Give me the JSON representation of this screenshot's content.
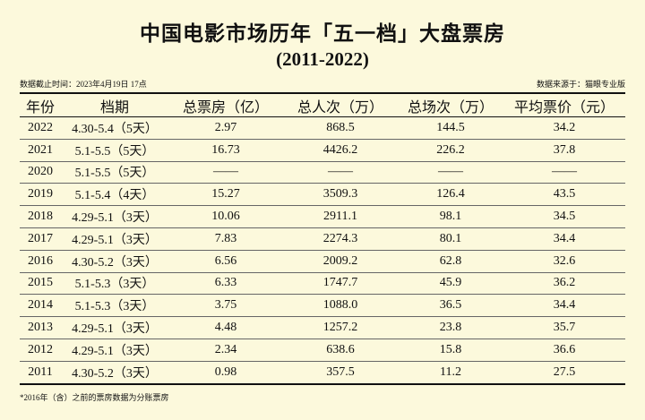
{
  "header": {
    "title": "中国电影市场历年「五一档」大盘票房",
    "subtitle": "(2011-2022)",
    "cutoff": "数据截止时间：2023年4月19日 17点",
    "source": "数据来源于：猫眼专业版"
  },
  "table": {
    "columns": [
      "年份",
      "档期",
      "总票房（亿）",
      "总人次（万）",
      "总场次（万）",
      "平均票价（元）"
    ],
    "rows": [
      [
        "2022",
        "4.30-5.4（5天）",
        "2.97",
        "868.5",
        "144.5",
        "34.2"
      ],
      [
        "2021",
        "5.1-5.5（5天）",
        "16.73",
        "4426.2",
        "226.2",
        "37.8"
      ],
      [
        "2020",
        "5.1-5.5（5天）",
        "——",
        "——",
        "——",
        "——"
      ],
      [
        "2019",
        "5.1-5.4（4天）",
        "15.27",
        "3509.3",
        "126.4",
        "43.5"
      ],
      [
        "2018",
        "4.29-5.1（3天）",
        "10.06",
        "2911.1",
        "98.1",
        "34.5"
      ],
      [
        "2017",
        "4.29-5.1（3天）",
        "7.83",
        "2274.3",
        "80.1",
        "34.4"
      ],
      [
        "2016",
        "4.30-5.2（3天）",
        "6.56",
        "2009.2",
        "62.8",
        "32.6"
      ],
      [
        "2015",
        "5.1-5.3（3天）",
        "6.33",
        "1747.7",
        "45.9",
        "36.2"
      ],
      [
        "2014",
        "5.1-5.3（3天）",
        "3.75",
        "1088.0",
        "36.5",
        "34.4"
      ],
      [
        "2013",
        "4.29-5.1（3天）",
        "4.48",
        "1257.2",
        "23.8",
        "35.7"
      ],
      [
        "2012",
        "4.29-5.1（3天）",
        "2.34",
        "638.6",
        "15.8",
        "36.6"
      ],
      [
        "2011",
        "4.30-5.2（3天）",
        "0.98",
        "357.5",
        "11.2",
        "27.5"
      ]
    ]
  },
  "footnote": "*2016年（含）之前的票房数据为分账票房"
}
